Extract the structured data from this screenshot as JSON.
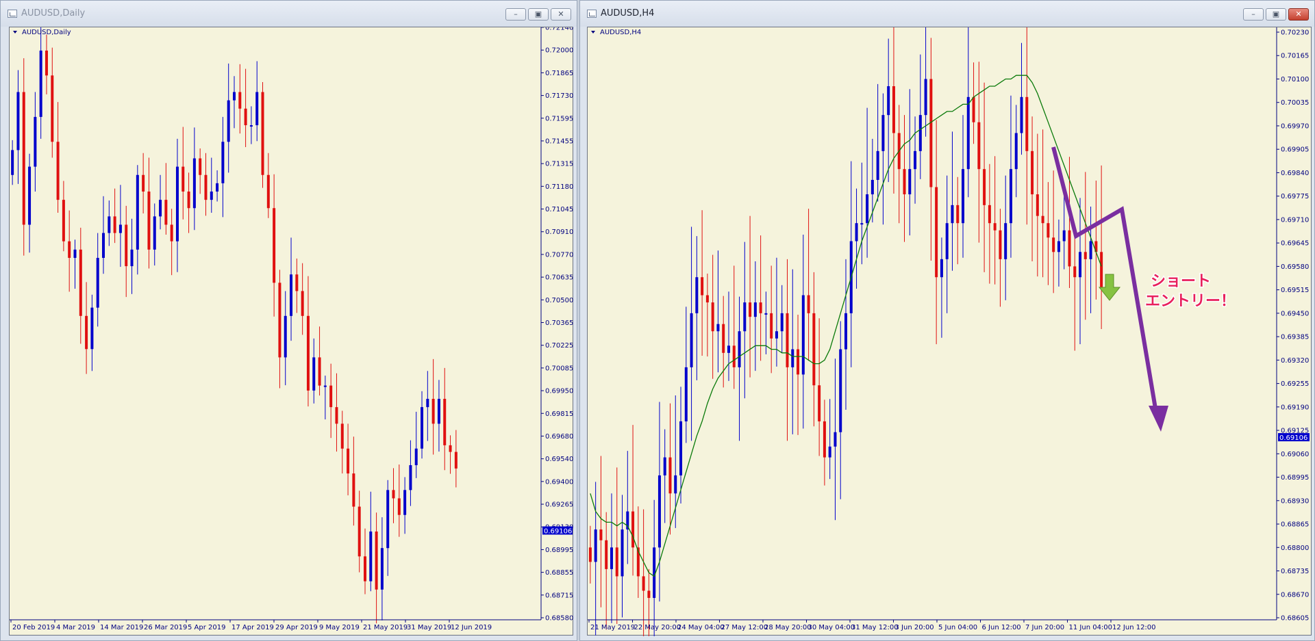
{
  "colors": {
    "up": "#0000cc",
    "down": "#e01010",
    "background": "#f5f3dc",
    "text": "#000080",
    "ma": "#0a7a0a",
    "annotation": "#7a2ea0",
    "annotation_text": "#e8205c",
    "arrow_fill": "#86c241",
    "bid_bg": "#0000cc"
  },
  "icons": {
    "window": "chart-window-icon",
    "minimize": "minimize-icon",
    "maximize": "maximize-icon",
    "close": "close-icon",
    "dropdown": "triangle-down-icon"
  },
  "left": {
    "window_title": "AUDUSD,Daily",
    "chart_label": "AUDUSD,Daily",
    "chart_data": {
      "type": "candlestick",
      "symbol": "AUDUSD",
      "timeframe": "Daily",
      "ylim": [
        0.6858,
        0.7214
      ],
      "y_ticks": [
        "0.72140",
        "0.72000",
        "0.71865",
        "0.71730",
        "0.71595",
        "0.71455",
        "0.71315",
        "0.71180",
        "0.71045",
        "0.70910",
        "0.70770",
        "0.70635",
        "0.70500",
        "0.70365",
        "0.70225",
        "0.70085",
        "0.69950",
        "0.69815",
        "0.69680",
        "0.69540",
        "0.69400",
        "0.69265",
        "0.69130",
        "0.68995",
        "0.68855",
        "0.68715",
        "0.68580"
      ],
      "x_ticks": [
        "20 Feb 2019",
        "4 Mar 2019",
        "14 Mar 2019",
        "26 Mar 2019",
        "5 Apr 2019",
        "17 Apr 2019",
        "29 Apr 2019",
        "9 May 2019",
        "21 May 2019",
        "31 May 2019",
        "12 Jun 2019"
      ],
      "bid_price": "0.69106",
      "bid_value": 0.69106,
      "closes": [
        0.714,
        0.7175,
        0.7095,
        0.713,
        0.716,
        0.72,
        0.7185,
        0.7145,
        0.711,
        0.7085,
        0.7075,
        0.708,
        0.704,
        0.702,
        0.7045,
        0.7075,
        0.709,
        0.71,
        0.709,
        0.7095,
        0.707,
        0.708,
        0.7125,
        0.7115,
        0.708,
        0.71,
        0.711,
        0.7095,
        0.7085,
        0.713,
        0.7115,
        0.7105,
        0.7135,
        0.7125,
        0.711,
        0.7115,
        0.712,
        0.7145,
        0.717,
        0.7175,
        0.7165,
        0.7155,
        0.7155,
        0.7175,
        0.7125,
        0.7105,
        0.706,
        0.7015,
        0.704,
        0.7065,
        0.7055,
        0.704,
        0.6995,
        0.7015,
        0.6998,
        0.6998,
        0.6985,
        0.6975,
        0.696,
        0.6945,
        0.6925,
        0.6895,
        0.688,
        0.691,
        0.6875,
        0.69,
        0.6935,
        0.693,
        0.692,
        0.6935,
        0.695,
        0.696,
        0.6985,
        0.699,
        0.6975,
        0.699,
        0.6962,
        0.6958,
        0.6948
      ]
    }
  },
  "right": {
    "window_title": "AUDUSD,H4",
    "chart_label": "AUDUSD,H4",
    "chart_data": {
      "type": "candlestick",
      "symbol": "AUDUSD",
      "timeframe": "H4",
      "ylim": [
        0.68605,
        0.7023
      ],
      "y_ticks": [
        "0.70230",
        "0.70165",
        "0.70100",
        "0.70035",
        "0.69970",
        "0.69905",
        "0.69840",
        "0.69775",
        "0.69710",
        "0.69645",
        "0.69580",
        "0.69515",
        "0.69450",
        "0.69385",
        "0.69320",
        "0.69255",
        "0.69190",
        "0.69125",
        "0.69060",
        "0.68995",
        "0.68930",
        "0.68865",
        "0.68800",
        "0.68735",
        "0.68670",
        "0.68605"
      ],
      "x_ticks": [
        "21 May 2019",
        "22 May 20:00",
        "24 May 04:00",
        "27 May 12:00",
        "28 May 20:00",
        "30 May 04:00",
        "31 May 12:00",
        "3 Jun 20:00",
        "5 Jun 04:00",
        "6 Jun 12:00",
        "7 Jun 20:00",
        "11 Jun 04:00",
        "12 Jun 12:00"
      ],
      "bid_price": "0.69106",
      "bid_value": 0.69106,
      "closes": [
        0.6876,
        0.6885,
        0.6882,
        0.6874,
        0.688,
        0.6872,
        0.6885,
        0.689,
        0.688,
        0.6872,
        0.6868,
        0.6866,
        0.688,
        0.69,
        0.6905,
        0.6895,
        0.69,
        0.6915,
        0.693,
        0.6945,
        0.6955,
        0.695,
        0.6948,
        0.694,
        0.6942,
        0.6934,
        0.6936,
        0.693,
        0.694,
        0.6948,
        0.6944,
        0.6948,
        0.6945,
        0.6945,
        0.6938,
        0.694,
        0.6945,
        0.693,
        0.6935,
        0.6928,
        0.695,
        0.6945,
        0.6925,
        0.6915,
        0.6905,
        0.6908,
        0.6912,
        0.6935,
        0.6945,
        0.6965,
        0.697,
        0.697,
        0.6978,
        0.6982,
        0.699,
        0.7,
        0.7008,
        0.6995,
        0.6985,
        0.6978,
        0.6985,
        0.699,
        0.7,
        0.701,
        0.698,
        0.6955,
        0.696,
        0.697,
        0.6975,
        0.697,
        0.6985,
        0.7005,
        0.6998,
        0.6985,
        0.6975,
        0.697,
        0.6968,
        0.696,
        0.697,
        0.6985,
        0.6995,
        0.7005,
        0.699,
        0.6978,
        0.6972,
        0.697,
        0.6966,
        0.6962,
        0.6965,
        0.6968,
        0.6958,
        0.6955,
        0.6962,
        0.696,
        0.6965,
        0.6962,
        0.6952
      ],
      "ma_values": [
        0.6895,
        0.689,
        0.6888,
        0.6887,
        0.6887,
        0.6886,
        0.6887,
        0.6886,
        0.6883,
        0.6879,
        0.6876,
        0.6873,
        0.6872,
        0.6876,
        0.6881,
        0.6886,
        0.6891,
        0.6896,
        0.6901,
        0.6906,
        0.6911,
        0.6915,
        0.692,
        0.6924,
        0.6927,
        0.6929,
        0.6931,
        0.6932,
        0.6933,
        0.6934,
        0.6935,
        0.6936,
        0.6936,
        0.6936,
        0.6935,
        0.6935,
        0.6934,
        0.6934,
        0.6933,
        0.6933,
        0.6933,
        0.6932,
        0.6931,
        0.6931,
        0.6932,
        0.6935,
        0.694,
        0.6945,
        0.695,
        0.6955,
        0.696,
        0.6965,
        0.6969,
        0.6973,
        0.6977,
        0.6981,
        0.6985,
        0.6988,
        0.699,
        0.6992,
        0.6993,
        0.6995,
        0.6996,
        0.6997,
        0.6998,
        0.6999,
        0.7,
        0.7001,
        0.7001,
        0.7002,
        0.7003,
        0.7003,
        0.7005,
        0.7006,
        0.7007,
        0.7008,
        0.7008,
        0.7009,
        0.701,
        0.701,
        0.7011,
        0.7011,
        0.7011,
        0.7009,
        0.7006,
        0.7002,
        0.6998,
        0.6994,
        0.699,
        0.6986,
        0.6982,
        0.6978,
        0.6974,
        0.697,
        0.6966,
        0.6962,
        0.6958
      ]
    },
    "annotation": {
      "text_line1": "ショート",
      "text_line2": "エントリー！"
    }
  }
}
